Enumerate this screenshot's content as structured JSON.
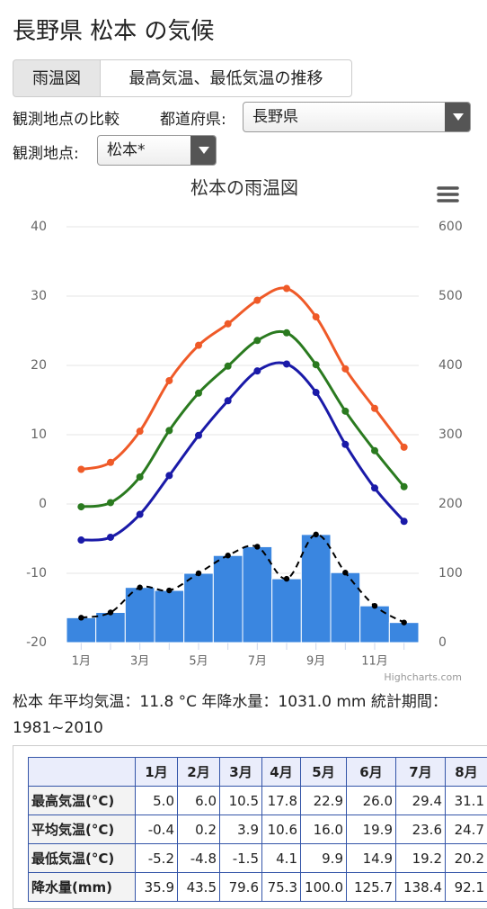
{
  "header": {
    "title": "長野県 松本 の気候"
  },
  "tabs": [
    "雨温図",
    "最高気温、最低気温の推移"
  ],
  "filters": {
    "compare_label": "観測地点の比較",
    "pref_label": "都道府県:",
    "pref_value": "長野県",
    "station_label": "観測地点:",
    "station_value": "松本*"
  },
  "chart_data": {
    "type": "line",
    "title": "松本の雨温図",
    "categories": [
      "1月",
      null,
      "3月",
      null,
      "5月",
      null,
      "7月",
      null,
      "9月",
      null,
      "11月",
      null
    ],
    "ylim": [
      -20,
      40
    ],
    "yticks": [
      -20,
      -10,
      0,
      10,
      20,
      30,
      40
    ],
    "y2lim": [
      0,
      600
    ],
    "y2ticks": [
      0,
      100,
      200,
      300,
      400,
      500,
      600
    ],
    "grid": true,
    "credits": "Highcharts.com",
    "series": [
      {
        "type": "line",
        "color": "#ef5a28",
        "values": [
          5.0,
          6.0,
          10.5,
          17.8,
          22.9,
          26.0,
          29.4,
          31.1,
          27.0,
          19.5,
          13.8,
          8.2
        ]
      },
      {
        "type": "line",
        "color": "#2a7a1f",
        "values": [
          -0.4,
          0.2,
          3.9,
          10.6,
          16.0,
          19.9,
          23.6,
          24.7,
          20.1,
          13.4,
          7.7,
          2.5
        ]
      },
      {
        "type": "line",
        "color": "#1a1aa8",
        "values": [
          -5.2,
          -4.8,
          -1.5,
          4.1,
          9.9,
          14.9,
          19.2,
          20.2,
          16.1,
          8.6,
          2.3,
          -2.5
        ]
      },
      {
        "type": "bar",
        "axis": "y2",
        "color": "#3a86e0",
        "values": [
          35.9,
          43.5,
          79.6,
          75.3,
          100.0,
          125.7,
          138.4,
          92.1,
          156,
          101,
          53,
          29
        ],
        "overlay": {
          "color": "#000000",
          "dashed": true
        }
      }
    ]
  },
  "summary": "松本 年平均気温：11.8 °C 年降水量：1031.0 mm 統計期間：1981~2010",
  "table": {
    "header": [
      "1月",
      "2月",
      "3月",
      "4月",
      "5月",
      "6月",
      "7月",
      "8月"
    ],
    "rows": [
      [
        "最高気温(°C)",
        "5.0",
        "6.0",
        "10.5",
        "17.8",
        "22.9",
        "26.0",
        "29.4",
        "31.1"
      ],
      [
        "平均気温(°C)",
        "-0.4",
        "0.2",
        "3.9",
        "10.6",
        "16.0",
        "19.9",
        "23.6",
        "24.7"
      ],
      [
        "最低気温(°C)",
        "-5.2",
        "-4.8",
        "-1.5",
        "4.1",
        "9.9",
        "14.9",
        "19.2",
        "20.2"
      ],
      [
        "降水量(mm)",
        "35.9",
        "43.5",
        "79.6",
        "75.3",
        "100.0",
        "125.7",
        "138.4",
        "92.1"
      ]
    ]
  }
}
